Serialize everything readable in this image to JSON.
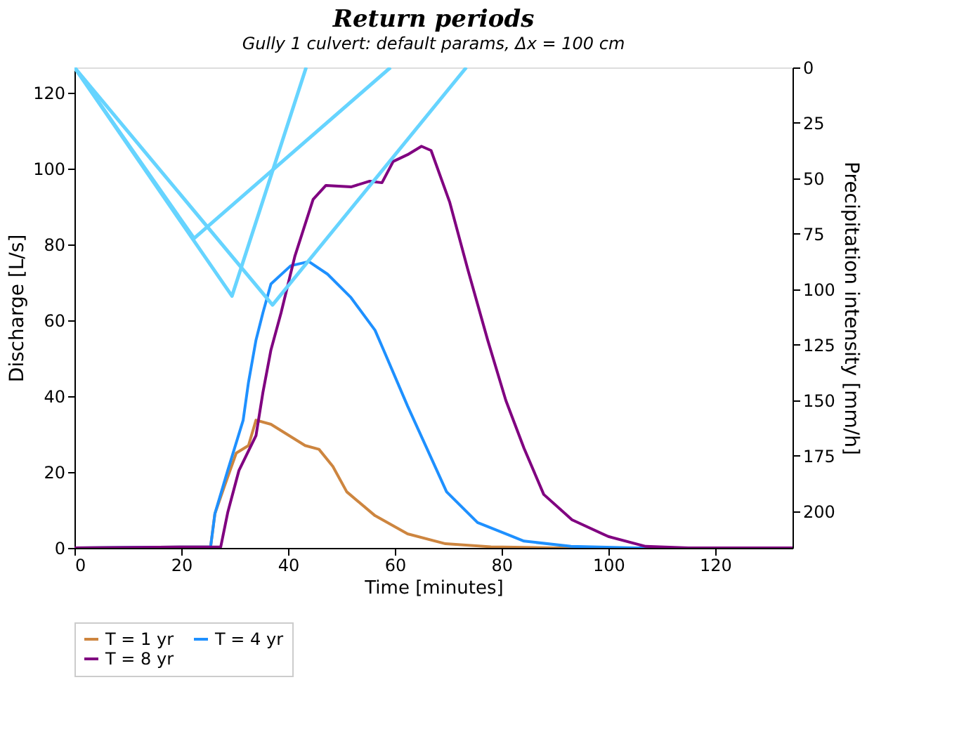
{
  "chart_data": {
    "type": "line",
    "title": "Return periods",
    "subtitle": "Gully 1 culvert: default params, Δx = 100 cm",
    "xlabel": "Time [minutes]",
    "ylabel": "Discharge [L/s]",
    "y2label": "Precipitation intensity [mm/h]",
    "xlim": [
      0,
      134.5
    ],
    "xticks": [
      0,
      20,
      40,
      60,
      80,
      100,
      120
    ],
    "ylim": [
      0,
      126.7
    ],
    "yticks": [
      0,
      20,
      40,
      60,
      80,
      100,
      120
    ],
    "y2lim": [
      216.5,
      0
    ],
    "y2ticks": [
      0,
      25,
      50,
      75,
      100,
      125,
      150,
      175,
      200
    ],
    "grid": false,
    "legend": "bottom",
    "marker": "none",
    "line_style": "solid",
    "series": [
      {
        "name": "T = 1 yr",
        "color": "#cd853f",
        "x": [
          0,
          25.5,
          26.3,
          28.2,
          30.3,
          32.6,
          34,
          36.8,
          43.2,
          45.8,
          48.4,
          51,
          56.3,
          62.4,
          69.5,
          78,
          90,
          134.5
        ],
        "values": [
          0,
          0.3,
          9,
          16.7,
          25,
          27,
          33.7,
          32.6,
          27,
          26,
          21.5,
          14.8,
          8.5,
          3.7,
          1.1,
          0.3,
          0,
          0
        ]
      },
      {
        "name": "T = 4 yr",
        "color": "#1e90ff",
        "x": [
          0,
          25.5,
          26.3,
          28.7,
          31.6,
          32.6,
          34,
          35.3,
          36.8,
          40.5,
          43.9,
          47.4,
          51.8,
          56.3,
          57.9,
          62.4,
          65.5,
          69.7,
          75.5,
          84.2,
          93,
          105,
          134.5
        ],
        "values": [
          0,
          0.3,
          9,
          20.4,
          33.7,
          43.7,
          54.8,
          62,
          69.6,
          74.4,
          75.5,
          72.2,
          66,
          57.4,
          52.2,
          37.4,
          27.8,
          14.8,
          6.7,
          1.8,
          0.4,
          0,
          0
        ]
      },
      {
        "name": "T = 8 yr",
        "color": "#800080",
        "x": [
          0,
          27.4,
          28.7,
          30.8,
          34,
          35.3,
          36.8,
          38.7,
          41.3,
          44.7,
          47.1,
          51.8,
          55.3,
          57.6,
          59.7,
          62.4,
          65,
          66.8,
          70.3,
          73.7,
          77.4,
          80.8,
          84.2,
          87.9,
          93.2,
          100,
          107,
          115,
          134.5
        ],
        "values": [
          0,
          0.3,
          9.3,
          20.4,
          29.6,
          41,
          52.2,
          62,
          77,
          91.9,
          95.6,
          95.2,
          96.7,
          96.3,
          101.9,
          103.7,
          105.9,
          104.8,
          91.1,
          73.3,
          54.8,
          38.9,
          26.3,
          14.1,
          7.4,
          3,
          0.4,
          0,
          0
        ]
      },
      {
        "axis": "y2",
        "color": "#66d4ff",
        "x": [
          0,
          29.5,
          43.4
        ],
        "values": [
          0,
          103,
          0
        ]
      },
      {
        "axis": "y2",
        "color": "#66d4ff",
        "x": [
          0,
          37.1,
          73.4
        ],
        "values": [
          0,
          107,
          0
        ]
      },
      {
        "axis": "y2",
        "color": "#66d4ff",
        "x": [
          0,
          22.4,
          59.2
        ],
        "values": [
          0,
          77,
          0
        ]
      }
    ]
  }
}
